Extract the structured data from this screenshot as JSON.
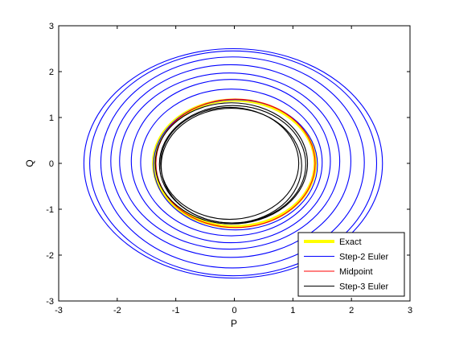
{
  "chart_data": {
    "type": "line",
    "title": "",
    "xlabel": "P",
    "ylabel": "Q",
    "xlim": [
      -3,
      3
    ],
    "ylim": [
      -3,
      3
    ],
    "xticks": [
      "-3",
      "-2",
      "-1",
      "0",
      "1",
      "2",
      "3"
    ],
    "yticks": [
      "-3",
      "-2",
      "-1",
      "0",
      "1",
      "2",
      "3"
    ],
    "grid": false,
    "legend_position": "bottom-right",
    "series": [
      {
        "name": "Exact",
        "color": "#ffff00",
        "style": "thick solid",
        "orbits": [
          {
            "rp": 1.38,
            "rq": 1.38,
            "cp": 0.0,
            "cq": 0.0
          }
        ]
      },
      {
        "name": "Step-2 Euler",
        "color": "#0000ff",
        "style": "thin solid",
        "orbits": [
          {
            "rp": 1.4,
            "rq": 1.42,
            "cp": 0.02,
            "cq": -0.03
          },
          {
            "rp": 1.55,
            "rq": 1.6,
            "cp": -0.05,
            "cq": 0.02
          },
          {
            "rp": 1.7,
            "rq": 1.78,
            "cp": -0.06,
            "cq": 0.05
          },
          {
            "rp": 1.88,
            "rq": 1.92,
            "cp": -0.08,
            "cq": 0.05
          },
          {
            "rp": 2.05,
            "rq": 2.1,
            "cp": -0.06,
            "cq": 0.05
          },
          {
            "rp": 2.25,
            "rq": 2.3,
            "cp": -0.03,
            "cq": 0.02
          },
          {
            "rp": 2.45,
            "rq": 2.45,
            "cp": -0.02,
            "cq": 0.0
          },
          {
            "rp": 2.55,
            "rq": 2.5,
            "cp": -0.02,
            "cq": 0.0
          }
        ]
      },
      {
        "name": "Midpoint",
        "color": "#ff0000",
        "style": "thin solid",
        "orbits": [
          {
            "rp": 1.36,
            "rq": 1.4,
            "cp": 0.02,
            "cq": 0.0
          }
        ]
      },
      {
        "name": "Step-3 Euler",
        "color": "#000000",
        "style": "thin solid",
        "orbits": [
          {
            "rp": 1.3,
            "rq": 1.32,
            "cp": -0.05,
            "cq": 0.0
          },
          {
            "rp": 1.25,
            "rq": 1.28,
            "cp": -0.03,
            "cq": -0.02
          },
          {
            "rp": 1.2,
            "rq": 1.25,
            "cp": -0.05,
            "cq": -0.05
          },
          {
            "rp": 1.18,
            "rq": 1.22,
            "cp": -0.08,
            "cq": 0.0
          }
        ]
      }
    ]
  }
}
